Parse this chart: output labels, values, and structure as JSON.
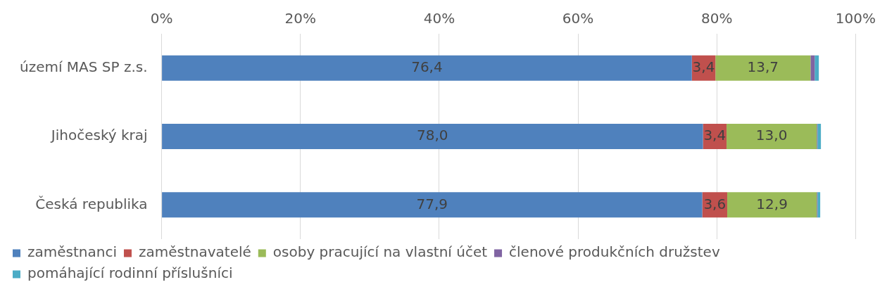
{
  "chart_data": {
    "type": "bar",
    "orientation": "horizontal",
    "stacked": true,
    "categories": [
      "území MAS SP z.s.",
      "Jihočeský kraj",
      "Česká republika"
    ],
    "series": [
      {
        "name": "zaměstnanci",
        "color": "#4f81bd",
        "values": [
          76.4,
          78.0,
          77.9
        ],
        "value_labels": [
          "76,4",
          "78,0",
          "77,9"
        ]
      },
      {
        "name": "zaměstnavatelé",
        "color": "#c0504d",
        "values": [
          3.4,
          3.4,
          3.6
        ],
        "value_labels": [
          "3,4",
          "3,4",
          "3,6"
        ]
      },
      {
        "name": "osoby pracující na vlastní účet",
        "color": "#9bbb59",
        "values": [
          13.7,
          13.0,
          12.9
        ],
        "value_labels": [
          "13,7",
          "13,0",
          "12,9"
        ]
      },
      {
        "name": "členové produkčních družstev",
        "color": "#8064a2",
        "values": [
          0.6,
          0.1,
          0.1
        ]
      },
      {
        "name": "pomáhající rodinní příslušníci",
        "color": "#4bacc6",
        "values": [
          0.6,
          0.5,
          0.4
        ]
      }
    ],
    "xlim": [
      0,
      100
    ],
    "xticks": [
      {
        "value": 0,
        "label": "0%"
      },
      {
        "value": 20,
        "label": "20%"
      },
      {
        "value": 40,
        "label": "40%"
      },
      {
        "value": 60,
        "label": "60%"
      },
      {
        "value": 80,
        "label": "80%"
      },
      {
        "value": 100,
        "label": "100%"
      }
    ],
    "grid": "x",
    "legend": "bottom"
  }
}
